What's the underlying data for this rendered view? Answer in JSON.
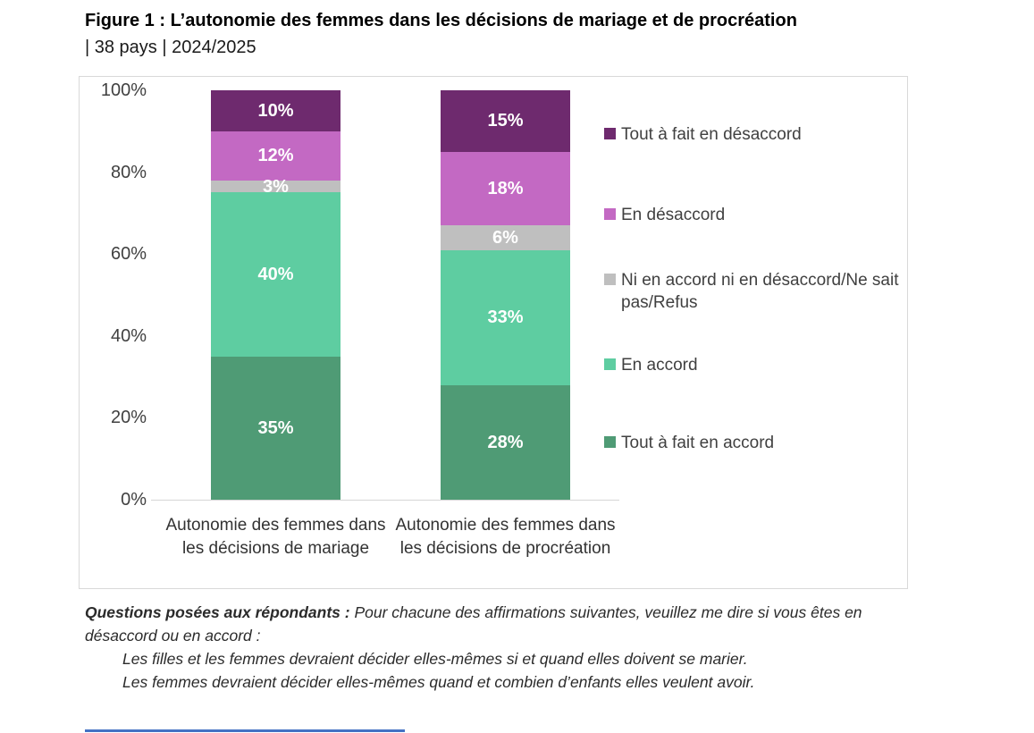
{
  "title": {
    "line1": "Figure 1 : L’autonomie des femmes dans les décisions de mariage et de procréation",
    "line2": "|  38 pays  |  2024/2025"
  },
  "chart_data": {
    "type": "bar",
    "stacked": true,
    "title": "Figure 1 : L’autonomie des femmes dans les décisions de mariage et de procréation | 38 pays | 2024/2025",
    "categories": [
      "Autonomie des femmes dans les décisions de mariage",
      "Autonomie des femmes dans les décisions de procréation"
    ],
    "series": [
      {
        "name": "Tout à fait en accord",
        "color": "#4F9B75",
        "values": [
          35,
          28
        ]
      },
      {
        "name": "En accord",
        "color": "#5ECDA1",
        "values": [
          40,
          33
        ]
      },
      {
        "name": "Ni en accord ni en désaccord/Ne sait pas/Refus",
        "color": "#BFBFBF",
        "values": [
          3,
          6
        ]
      },
      {
        "name": "En désaccord",
        "color": "#C369C3",
        "values": [
          12,
          18
        ]
      },
      {
        "name": "Tout à fait en désaccord",
        "color": "#6E2A6E",
        "values": [
          10,
          15
        ]
      }
    ],
    "xlabel": "",
    "ylabel": "",
    "ylim": [
      0,
      100
    ],
    "yticks": [
      "0%",
      "20%",
      "40%",
      "60%",
      "80%",
      "100%"
    ],
    "grid": false,
    "legend_position": "right",
    "data_labels": "percent, white, inside segment"
  },
  "footnote": {
    "lead_bold": "Questions posées aux répondants :",
    "lead_rest": " Pour chacune des affirmations suivantes, veuillez me dire si vous êtes en désaccord ou en accord :",
    "items": [
      "Les filles et les femmes devraient décider elles-mêmes si et quand elles doivent se marier.",
      "Les femmes devraient décider elles-mêmes quand et combien d’enfants elles veulent avoir."
    ]
  },
  "colors": {
    "figure_border": "#D9D9D9",
    "axis_line": "#D6D6D6",
    "axis_text": "#404040",
    "data_label_text": "#FFFFFF",
    "accent_line": "#4472C4"
  }
}
